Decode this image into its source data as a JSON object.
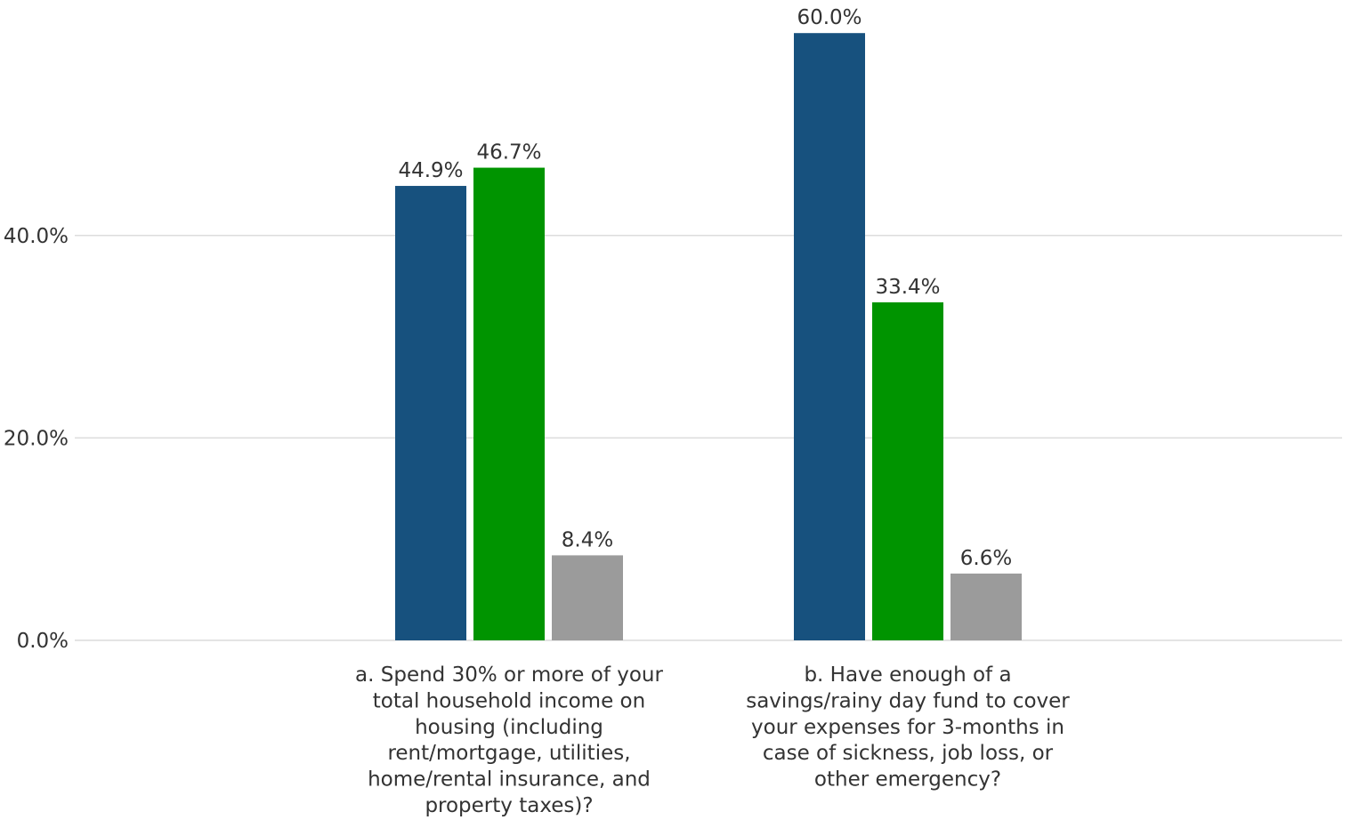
{
  "chart_data": {
    "type": "bar",
    "categories": [
      "a. Spend 30% or more of your total household income on housing (including rent/mortgage, utilities, home/rental insurance, and property taxes)?",
      "b. Have enough of a savings/rainy day fund to cover your expenses for 3-months in case of sickness, job loss, or other emergency?"
    ],
    "category_lines": [
      [
        "a. Spend 30% or more of your",
        "total household income on",
        "housing (including",
        "rent/mortgage, utilities,",
        "home/rental insurance, and",
        "property taxes)?"
      ],
      [
        "b. Have enough of a",
        "savings/rainy day fund to cover",
        "your expenses for 3-months in",
        "case of sickness, job loss, or",
        "other emergency?"
      ]
    ],
    "series": [
      {
        "values": [
          44.9,
          60.0
        ],
        "labels": [
          "44.9%",
          "60.0%"
        ],
        "color": "#17517e"
      },
      {
        "values": [
          46.7,
          33.4
        ],
        "labels": [
          "46.7%",
          "33.4%"
        ],
        "color": "#009400"
      },
      {
        "values": [
          8.4,
          6.6
        ],
        "labels": [
          "8.4%",
          "6.6%"
        ],
        "color": "#9b9b9b"
      }
    ],
    "yticks": [
      0,
      20,
      40
    ],
    "ytick_labels": [
      "0.0%",
      "20.0%",
      "40.0%"
    ],
    "ylim": [
      0,
      64
    ],
    "grid": true,
    "legend": "none"
  }
}
